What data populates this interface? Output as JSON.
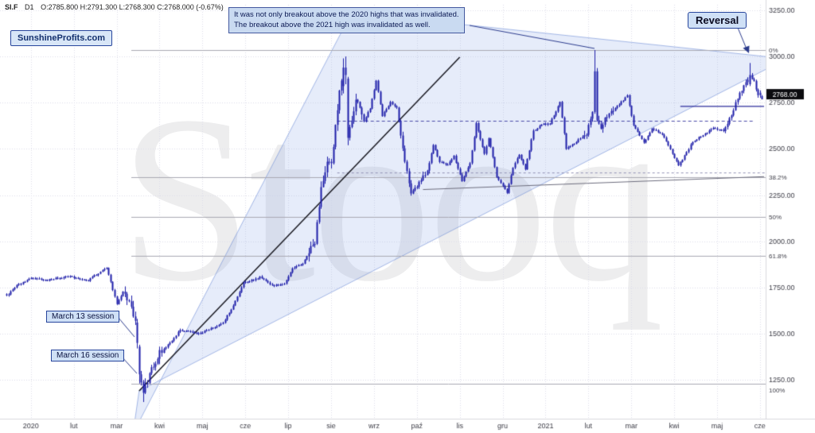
{
  "header": {
    "symbol": "SI.F",
    "interval": "D1",
    "ohlc": "O:2785.800  H:2791.300  L:2768.300  C:2768.000  (-0.67%)"
  },
  "branding": {
    "label": "SunshineProfits.com",
    "watermark": "Stooq"
  },
  "annotations": {
    "invalidation_line1": "It was not only breakout above the 2020 highs that was invalidated.",
    "invalidation_line2": "The breakout above the 2021 high was invalidated as well.",
    "reversal": "Reversal",
    "march13": "March 13 session",
    "march16": "March 16 session"
  },
  "price_box": {
    "label": "2768.00",
    "price": 2768
  },
  "chart_data": {
    "type": "candlestick",
    "symbol": "SI.F",
    "interval": "daily",
    "days": 371,
    "x_labels": [
      "2020",
      "lut",
      "mar",
      "kwi",
      "maj",
      "cze",
      "lip",
      "sie",
      "wrz",
      "paź",
      "lis",
      "gru",
      "2021",
      "lut",
      "mar",
      "kwi",
      "maj",
      "cze"
    ],
    "y_axis": {
      "labels": [
        "3250.00",
        "3000.00",
        "2750.00",
        "2500.00",
        "2250.00",
        "2000.00",
        "1750.00",
        "1500.00",
        "1250.00"
      ],
      "prices": [
        3250,
        3000,
        2750,
        2500,
        2250,
        2000,
        1750,
        1500,
        1250
      ]
    },
    "fib_levels": [
      {
        "label": "0%",
        "price": 3035
      },
      {
        "label": "38.2%",
        "price": 2346
      },
      {
        "label": "50%",
        "price": 2133
      },
      {
        "label": "61.8%",
        "price": 1920
      },
      {
        "label": "100%",
        "price": 1231
      }
    ],
    "keyframes": [
      [
        0,
        1705
      ],
      [
        5,
        1760
      ],
      [
        12,
        1800
      ],
      [
        20,
        1790
      ],
      [
        30,
        1810
      ],
      [
        40,
        1790
      ],
      [
        49,
        1860
      ],
      [
        54,
        1660
      ],
      [
        57,
        1730
      ],
      [
        60,
        1670
      ],
      [
        63,
        1560
      ],
      [
        64,
        1450
      ],
      [
        65,
        1280
      ],
      [
        67,
        1180
      ],
      [
        70,
        1280
      ],
      [
        75,
        1400
      ],
      [
        80,
        1450
      ],
      [
        85,
        1520
      ],
      [
        95,
        1500
      ],
      [
        106,
        1560
      ],
      [
        111,
        1650
      ],
      [
        116,
        1780
      ],
      [
        121,
        1790
      ],
      [
        124,
        1810
      ],
      [
        130,
        1760
      ],
      [
        136,
        1770
      ],
      [
        140,
        1850
      ],
      [
        145,
        1880
      ],
      [
        151,
        2000
      ],
      [
        154,
        2280
      ],
      [
        157,
        2440
      ],
      [
        159,
        2420
      ],
      [
        163,
        2820
      ],
      [
        165,
        2940
      ],
      [
        166,
        2900
      ],
      [
        167,
        2560
      ],
      [
        171,
        2770
      ],
      [
        175,
        2650
      ],
      [
        178,
        2720
      ],
      [
        181,
        2870
      ],
      [
        184,
        2680
      ],
      [
        188,
        2750
      ],
      [
        191,
        2720
      ],
      [
        195,
        2440
      ],
      [
        198,
        2250
      ],
      [
        202,
        2320
      ],
      [
        206,
        2380
      ],
      [
        209,
        2520
      ],
      [
        212,
        2430
      ],
      [
        216,
        2410
      ],
      [
        219,
        2460
      ],
      [
        223,
        2330
      ],
      [
        227,
        2420
      ],
      [
        230,
        2640
      ],
      [
        234,
        2470
      ],
      [
        236,
        2560
      ],
      [
        240,
        2350
      ],
      [
        245,
        2260
      ],
      [
        248,
        2400
      ],
      [
        251,
        2470
      ],
      [
        254,
        2390
      ],
      [
        258,
        2600
      ],
      [
        262,
        2630
      ],
      [
        266,
        2640
      ],
      [
        271,
        2750
      ],
      [
        274,
        2500
      ],
      [
        278,
        2530
      ],
      [
        281,
        2560
      ],
      [
        284,
        2580
      ],
      [
        287,
        2700
      ],
      [
        288,
        2920
      ],
      [
        289,
        2660
      ],
      [
        291,
        2620
      ],
      [
        295,
        2700
      ],
      [
        299,
        2730
      ],
      [
        304,
        2790
      ],
      [
        307,
        2630
      ],
      [
        312,
        2530
      ],
      [
        316,
        2610
      ],
      [
        321,
        2580
      ],
      [
        325,
        2500
      ],
      [
        329,
        2410
      ],
      [
        333,
        2480
      ],
      [
        336,
        2540
      ],
      [
        339,
        2560
      ],
      [
        343,
        2590
      ],
      [
        346,
        2610
      ],
      [
        351,
        2600
      ],
      [
        355,
        2680
      ],
      [
        357,
        2750
      ],
      [
        360,
        2820
      ],
      [
        364,
        2900
      ],
      [
        366,
        2860
      ],
      [
        368,
        2790
      ],
      [
        369,
        2800
      ],
      [
        370,
        2768
      ]
    ],
    "key_candles": {
      "64": [
        1560,
        1580,
        1420,
        1450
      ],
      "65": [
        1430,
        1440,
        1230,
        1280
      ],
      "67": [
        1240,
        1250,
        1130,
        1180
      ],
      "165": [
        2840,
        2990,
        2800,
        2940
      ],
      "166": [
        2940,
        3000,
        2850,
        2900
      ],
      "167": [
        2880,
        2890,
        2520,
        2560
      ],
      "288": [
        2700,
        3035,
        2690,
        2920
      ],
      "364": [
        2850,
        2965,
        2840,
        2900
      ],
      "370": [
        2785.8,
        2791.3,
        2768.3,
        2768
      ]
    },
    "vol_zones": [
      [
        58,
        76,
        26
      ],
      [
        148,
        174,
        26
      ],
      [
        193,
        207,
        13
      ],
      [
        283,
        297,
        18
      ],
      [
        352,
        371,
        9
      ]
    ],
    "overlays": {
      "channel": [
        [
          62,
          960
        ],
        [
          169,
          3237
        ],
        [
          382,
          2988
        ],
        [
          65,
          1190
        ]
      ],
      "trendline": {
        "from": [
          65,
          1190
        ],
        "to": [
          222,
          2996
        ]
      },
      "resistance_dashed": {
        "price": 2650,
        "from": 162,
        "to": 366
      },
      "minor_dashed": {
        "price": 2370,
        "from": 162,
        "to": 372
      },
      "rising_support": {
        "from": [
          204,
          2280
        ],
        "to": [
          371,
          2350
        ]
      },
      "recent_line": {
        "price": 2730,
        "from": 330,
        "to": 371
      }
    },
    "colors": {
      "candle": "#1d1da8",
      "grid": "#dcdce8",
      "fib": "#a9a9b2",
      "axis_text": "#3c3c46",
      "dashed": "#4747a6",
      "minor_dashed": "#8f8fb4",
      "support_line": "#6b6b7c",
      "recent_line": "#2a2a9a",
      "trendline": "#16161e",
      "channel_fill": "rgba(128,162,230,0.20)",
      "channel_edge": "rgba(96,130,210,0.55)",
      "callout": "#2a3a8c",
      "price_box_bg": "#0b0b0f",
      "price_box_text": "#ffffff"
    }
  }
}
